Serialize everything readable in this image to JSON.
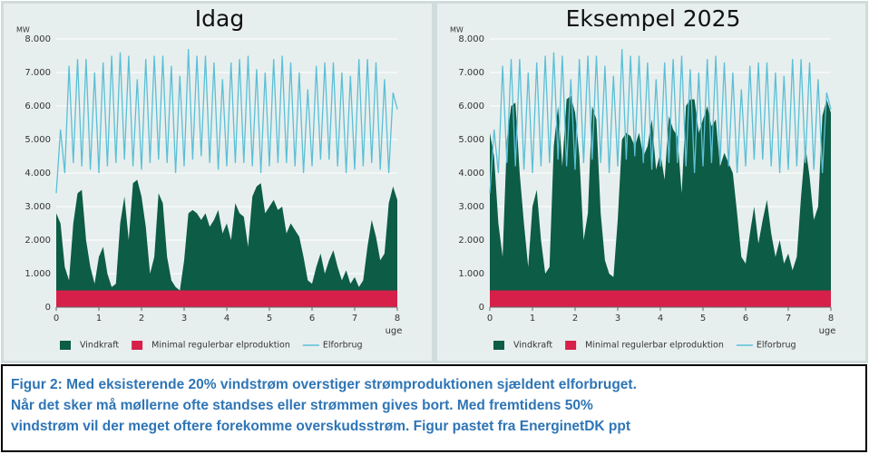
{
  "chart_data": [
    {
      "type": "area",
      "title": "Idag",
      "y_label": "MW",
      "x_label": "uge",
      "x": [
        0,
        0.1,
        0.2,
        0.3,
        0.4,
        0.5,
        0.6,
        0.7,
        0.8,
        0.9,
        1,
        1.1,
        1.2,
        1.3,
        1.4,
        1.5,
        1.6,
        1.7,
        1.8,
        1.9,
        2,
        2.1,
        2.2,
        2.3,
        2.4,
        2.5,
        2.6,
        2.7,
        2.8,
        2.9,
        3,
        3.1,
        3.2,
        3.3,
        3.4,
        3.5,
        3.6,
        3.7,
        3.8,
        3.9,
        4,
        4.1,
        4.2,
        4.3,
        4.4,
        4.5,
        4.6,
        4.7,
        4.8,
        4.9,
        5,
        5.1,
        5.2,
        5.3,
        5.4,
        5.5,
        5.6,
        5.7,
        5.8,
        5.9,
        6,
        6.1,
        6.2,
        6.3,
        6.4,
        6.5,
        6.6,
        6.7,
        6.8,
        6.9,
        7,
        7.1,
        7.2,
        7.3,
        7.4,
        7.5,
        7.6,
        7.7,
        7.8,
        7.9,
        8
      ],
      "series": [
        {
          "name": "Vindkraft",
          "color": "#0d5c45",
          "values": [
            2800,
            2500,
            1200,
            800,
            2500,
            3400,
            3500,
            2000,
            1200,
            700,
            1500,
            1800,
            1000,
            600,
            700,
            2500,
            3300,
            2000,
            3700,
            3800,
            3300,
            2400,
            1000,
            1500,
            3400,
            3100,
            1500,
            800,
            600,
            500,
            1400,
            2800,
            2900,
            2800,
            2600,
            2800,
            2400,
            2600,
            2900,
            2200,
            2500,
            2000,
            3100,
            2800,
            2700,
            1800,
            3300,
            3600,
            3700,
            2800,
            3000,
            3200,
            2900,
            3000,
            2200,
            2500,
            2300,
            2100,
            1500,
            800,
            700,
            1200,
            1600,
            1000,
            1400,
            1700,
            1200,
            800,
            1100,
            700,
            900,
            600,
            800,
            1800,
            2600,
            2100,
            1400,
            1600,
            3100,
            3600,
            3200
          ]
        },
        {
          "name": "Minimal regulerbar elproduktion",
          "color": "#d6204a",
          "values": [
            500,
            500,
            500,
            500,
            500,
            500,
            500,
            500,
            500,
            500,
            500,
            500,
            500,
            500,
            500,
            500,
            500,
            500,
            500,
            500,
            500,
            500,
            500,
            500,
            500,
            500,
            500,
            500,
            500,
            500,
            500,
            500,
            500,
            500,
            500,
            500,
            500,
            500,
            500,
            500,
            500,
            500,
            500,
            500,
            500,
            500,
            500,
            500,
            500,
            500,
            500,
            500,
            500,
            500,
            500,
            500,
            500,
            500,
            500,
            500,
            500,
            500,
            500,
            500,
            500,
            500,
            500,
            500,
            500,
            500,
            500,
            500,
            500,
            500,
            500,
            500,
            500,
            500,
            500,
            500,
            500
          ]
        },
        {
          "name": "Elforbrug",
          "color": "#5bbfd6",
          "values": [
            3400,
            5300,
            4000,
            7200,
            4300,
            7400,
            4200,
            7400,
            4100,
            7000,
            4000,
            7300,
            4200,
            7500,
            4300,
            7600,
            4400,
            7500,
            4200,
            6800,
            4100,
            7400,
            4300,
            7500,
            4400,
            7500,
            4300,
            7200,
            4000,
            6900,
            4200,
            7700,
            4400,
            7500,
            4500,
            7500,
            4300,
            7300,
            4100,
            6800,
            4200,
            7300,
            4300,
            7400,
            4300,
            7500,
            4200,
            7100,
            4000,
            7000,
            4200,
            7400,
            4300,
            7500,
            4300,
            7300,
            4200,
            7000,
            4000,
            6500,
            4200,
            7200,
            4400,
            7300,
            4400,
            7300,
            4200,
            7000,
            4000,
            6900,
            4100,
            7400,
            4200,
            7400,
            4300,
            7300,
            4100,
            6800,
            4000,
            6400,
            5900
          ]
        }
      ],
      "xlim": [
        0,
        8
      ],
      "xticks": [
        0,
        1,
        2,
        3,
        4,
        5,
        6,
        7,
        8
      ],
      "ylim": [
        0,
        8000
      ],
      "yticks": [
        0,
        {
          "value": 1000,
          "label": "1.000"
        },
        {
          "value": 2000,
          "label": "2.000"
        },
        {
          "value": 3000,
          "label": "3.000"
        },
        {
          "value": 4000,
          "label": "4.000"
        },
        {
          "value": 5000,
          "label": "5.000"
        },
        {
          "value": 6000,
          "label": "6.000"
        },
        {
          "value": 7000,
          "label": "7.000"
        },
        {
          "value": 8000,
          "label": "8.000"
        }
      ],
      "grid": true
    },
    {
      "type": "area",
      "title": "Eksempel 2025",
      "y_label": "MW",
      "x_label": "uge",
      "x": [
        0,
        0.1,
        0.2,
        0.3,
        0.4,
        0.5,
        0.6,
        0.7,
        0.8,
        0.9,
        1,
        1.1,
        1.2,
        1.3,
        1.4,
        1.5,
        1.6,
        1.7,
        1.8,
        1.9,
        2,
        2.1,
        2.2,
        2.3,
        2.4,
        2.5,
        2.6,
        2.7,
        2.8,
        2.9,
        3,
        3.1,
        3.2,
        3.3,
        3.4,
        3.5,
        3.6,
        3.7,
        3.8,
        3.9,
        4,
        4.1,
        4.2,
        4.3,
        4.4,
        4.5,
        4.6,
        4.7,
        4.8,
        4.9,
        5,
        5.1,
        5.2,
        5.3,
        5.4,
        5.5,
        5.6,
        5.7,
        5.8,
        5.9,
        6,
        6.1,
        6.2,
        6.3,
        6.4,
        6.5,
        6.6,
        6.7,
        6.8,
        6.9,
        7,
        7.1,
        7.2,
        7.3,
        7.4,
        7.5,
        7.6,
        7.7,
        7.8,
        7.9,
        8
      ],
      "series": [
        {
          "name": "Vindkraft",
          "color": "#0d5c45",
          "values": [
            5200,
            4500,
            2500,
            1500,
            5000,
            6000,
            6100,
            4000,
            2500,
            1200,
            3000,
            3500,
            2000,
            1000,
            1200,
            4800,
            6000,
            4200,
            6200,
            6300,
            5800,
            4500,
            2000,
            2800,
            6000,
            5600,
            2800,
            1400,
            1000,
            900,
            2600,
            5000,
            5200,
            5100,
            4800,
            5200,
            4500,
            4800,
            5600,
            4100,
            4600,
            3800,
            5700,
            5300,
            5100,
            3400,
            6000,
            6200,
            6200,
            5200,
            5600,
            6000,
            5400,
            5600,
            4200,
            4600,
            4300,
            4000,
            2800,
            1500,
            1300,
            2200,
            3000,
            1900,
            2600,
            3200,
            2200,
            1500,
            2000,
            1300,
            1600,
            1100,
            1500,
            3300,
            4800,
            3900,
            2600,
            3000,
            5700,
            6200,
            5800
          ]
        },
        {
          "name": "Minimal regulerbar elproduktion",
          "color": "#d6204a",
          "values": [
            500,
            500,
            500,
            500,
            500,
            500,
            500,
            500,
            500,
            500,
            500,
            500,
            500,
            500,
            500,
            500,
            500,
            500,
            500,
            500,
            500,
            500,
            500,
            500,
            500,
            500,
            500,
            500,
            500,
            500,
            500,
            500,
            500,
            500,
            500,
            500,
            500,
            500,
            500,
            500,
            500,
            500,
            500,
            500,
            500,
            500,
            500,
            500,
            500,
            500,
            500,
            500,
            500,
            500,
            500,
            500,
            500,
            500,
            500,
            500,
            500,
            500,
            500,
            500,
            500,
            500,
            500,
            500,
            500,
            500,
            500,
            500,
            500,
            500,
            500,
            500,
            500,
            500,
            500,
            500,
            500
          ]
        },
        {
          "name": "Elforbrug",
          "color": "#5bbfd6",
          "values": [
            3400,
            5300,
            4000,
            7200,
            4300,
            7400,
            4200,
            7400,
            4100,
            7000,
            4000,
            7300,
            4200,
            7500,
            4300,
            7600,
            4400,
            7500,
            4200,
            6800,
            4100,
            7400,
            4300,
            7500,
            4400,
            7500,
            4300,
            7200,
            4000,
            6900,
            4200,
            7700,
            4400,
            7500,
            4500,
            7500,
            4300,
            7300,
            4100,
            6800,
            4200,
            7300,
            4300,
            7400,
            4300,
            7500,
            4200,
            7100,
            4000,
            7000,
            4200,
            7400,
            4300,
            7500,
            4300,
            7300,
            4200,
            7000,
            4000,
            6500,
            4200,
            7200,
            4400,
            7300,
            4400,
            7300,
            4200,
            7000,
            4000,
            6900,
            4100,
            7400,
            4200,
            7400,
            4300,
            7300,
            4100,
            6800,
            4000,
            6400,
            5900
          ]
        }
      ],
      "xlim": [
        0,
        8
      ],
      "xticks": [
        0,
        1,
        2,
        3,
        4,
        5,
        6,
        7,
        8
      ],
      "ylim": [
        0,
        8000
      ],
      "yticks": [
        0,
        {
          "value": 1000,
          "label": "1.000"
        },
        {
          "value": 2000,
          "label": "2.000"
        },
        {
          "value": 3000,
          "label": "3.000"
        },
        {
          "value": 4000,
          "label": "4.000"
        },
        {
          "value": 5000,
          "label": "5.000"
        },
        {
          "value": 6000,
          "label": "6.000"
        },
        {
          "value": 7000,
          "label": "7.000"
        },
        {
          "value": 8000,
          "label": "8.000"
        }
      ],
      "grid": true
    }
  ],
  "caption": [
    "Figur 2: Med eksisterende 20% vindstrøm overstiger strømproduktionen sjældent elforbruget.",
    "Når det sker må møllerne ofte standses eller strømmen gives bort. Med fremtidens 50%",
    "vindstrøm vil der meget oftere forekomme overskudsstrøm. Figur pastet fra EnerginetDK ppt"
  ]
}
